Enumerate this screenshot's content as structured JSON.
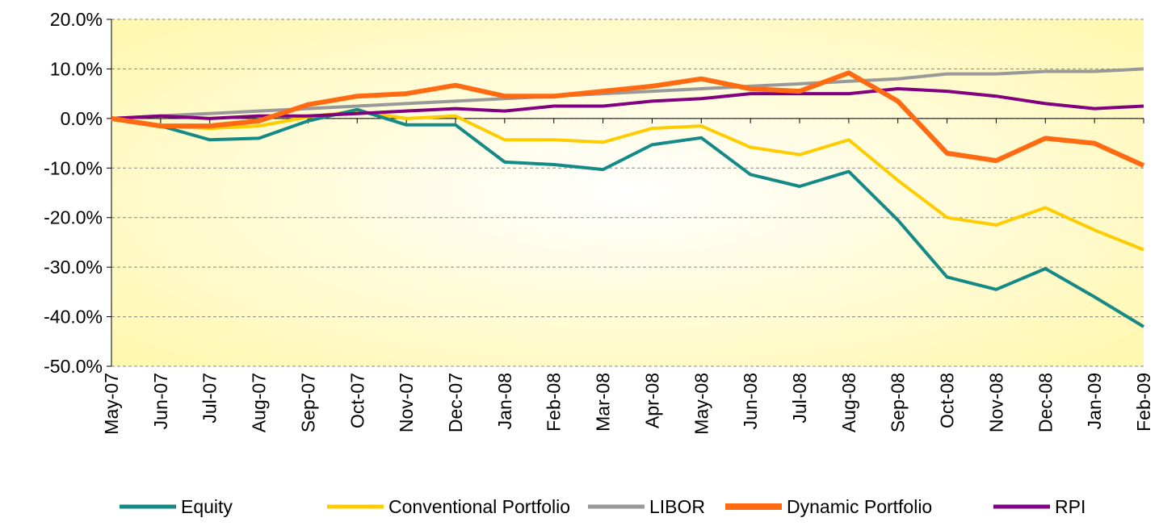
{
  "chart_data": {
    "type": "line",
    "categories": [
      "May-07",
      "Jun-07",
      "Jul-07",
      "Aug-07",
      "Sep-07",
      "Oct-07",
      "Nov-07",
      "Dec-07",
      "Jan-08",
      "Feb-08",
      "Mar-08",
      "Apr-08",
      "May-08",
      "Jun-08",
      "Jul-08",
      "Aug-08",
      "Sep-08",
      "Oct-08",
      "Nov-08",
      "Dec-08",
      "Jan-09",
      "Feb-09"
    ],
    "series": [
      {
        "name": "Equity",
        "color": "#138a86",
        "values": [
          0,
          -1.5,
          -4.3,
          -4.0,
          -0.5,
          1.8,
          -1.3,
          -1.3,
          -8.8,
          -9.3,
          -10.3,
          -5.3,
          -3.9,
          -11.3,
          -13.7,
          -10.7,
          -20.5,
          -32,
          -34.5,
          -30.3,
          -36,
          -42
        ]
      },
      {
        "name": "Conventional Portfolio",
        "color": "#ffcc00",
        "values": [
          0,
          -1.5,
          -2,
          -1.5,
          0.3,
          1.5,
          0,
          0.5,
          -4.3,
          -4.3,
          -4.8,
          -2,
          -1.5,
          -5.8,
          -7.3,
          -4.3,
          -12.5,
          -20,
          -21.5,
          -18,
          -22.5,
          -26.5
        ]
      },
      {
        "name": "LIBOR",
        "color": "#999999",
        "values": [
          0,
          0.5,
          1,
          1.5,
          2,
          2.5,
          3,
          3.5,
          4,
          4.5,
          5,
          5.5,
          6,
          6.5,
          7,
          7.5,
          8,
          9,
          9,
          9.5,
          9.5,
          10
        ]
      },
      {
        "name": "Dynamic Portfolio",
        "color": "#ff6a13",
        "values": [
          0,
          -1.5,
          -1.5,
          -0.5,
          2.8,
          4.5,
          5,
          6.7,
          4.5,
          4.5,
          5.5,
          6.5,
          8,
          6,
          5.5,
          9.2,
          3.5,
          -7,
          -8.5,
          -4,
          -5,
          -9.5
        ]
      },
      {
        "name": "RPI",
        "color": "#800080",
        "values": [
          0,
          0.5,
          0,
          0.5,
          0.5,
          1,
          1.5,
          2,
          1.5,
          2.5,
          2.5,
          3.5,
          4,
          5,
          5,
          5,
          6,
          5.5,
          4.5,
          3,
          2,
          2.5
        ]
      }
    ],
    "ylim": [
      -50,
      20
    ],
    "yticks": [
      {
        "value": -50,
        "label": "-50.0%"
      },
      {
        "value": -40,
        "label": "-40.0%"
      },
      {
        "value": -30,
        "label": "-30.0%"
      },
      {
        "value": -20,
        "label": "-20.0%"
      },
      {
        "value": -10,
        "label": "-10.0%"
      },
      {
        "value": 0,
        "label": "0.0%"
      },
      {
        "value": 10,
        "label": "10.0%"
      },
      {
        "value": 20,
        "label": "20.0%"
      }
    ],
    "grid": true
  }
}
